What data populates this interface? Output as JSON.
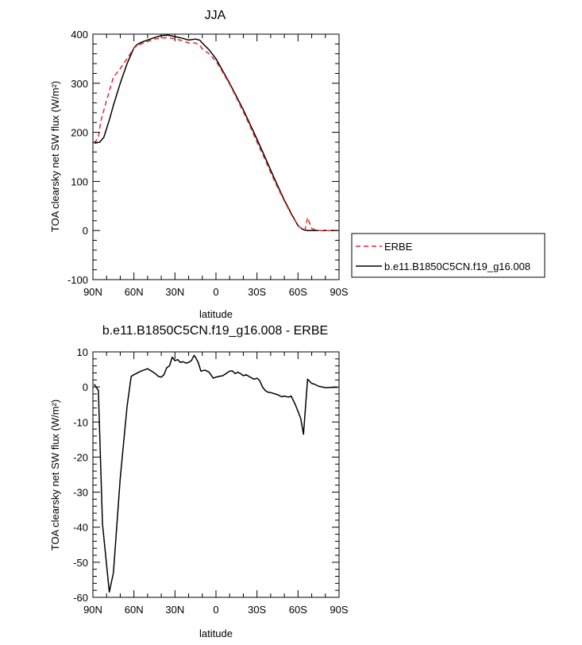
{
  "chart_data": [
    {
      "type": "line",
      "title": "JJA",
      "xlabel": "latitude",
      "ylabel": "TOA clearsky net SW flux (W/m²)",
      "xlim": [
        90,
        -90
      ],
      "ylim": [
        -100,
        400
      ],
      "x_ticks": [
        90,
        60,
        30,
        0,
        -30,
        -60,
        -90
      ],
      "x_tick_labels": [
        "90N",
        "60N",
        "30N",
        "0",
        "30S",
        "60S",
        "90S"
      ],
      "y_ticks": [
        -100,
        0,
        100,
        200,
        300,
        400
      ],
      "y_tick_labels": [
        "-100",
        "0",
        "100",
        "200",
        "300",
        "400"
      ],
      "legend": "right",
      "series": [
        {
          "name": "ERBE",
          "color": "#e8262a",
          "dash": "dashed",
          "x": [
            89,
            86,
            84,
            80,
            75,
            70,
            65,
            60,
            55,
            50,
            45,
            40,
            35,
            30,
            25,
            20,
            15,
            12,
            10,
            5,
            0,
            -5,
            -10,
            -15,
            -20,
            -25,
            -30,
            -35,
            -40,
            -45,
            -50,
            -55,
            -60,
            -65,
            -67,
            -70,
            -75,
            -80,
            -85,
            -89
          ],
          "values": [
            178,
            190,
            225,
            265,
            312,
            330,
            350,
            372,
            380,
            385,
            390,
            392,
            393,
            390,
            387,
            382,
            382,
            378,
            370,
            360,
            345,
            322,
            298,
            270,
            242,
            212,
            180,
            150,
            118,
            88,
            60,
            33,
            10,
            0,
            26,
            4,
            0,
            0,
            0,
            0
          ]
        },
        {
          "name": "b.e11.B1850C5CN.f19_g16.008",
          "color": "#000000",
          "dash": "solid",
          "x": [
            89,
            85,
            82,
            78,
            75,
            70,
            65,
            60,
            58,
            55,
            50,
            45,
            40,
            35,
            30,
            25,
            20,
            15,
            12,
            10,
            5,
            0,
            -5,
            -10,
            -15,
            -20,
            -25,
            -30,
            -35,
            -40,
            -45,
            -50,
            -55,
            -60,
            -63,
            -65,
            -67,
            -70,
            -75,
            -80,
            -85,
            -89
          ],
          "values": [
            178,
            180,
            190,
            225,
            255,
            300,
            340,
            372,
            378,
            383,
            388,
            393,
            397,
            398,
            395,
            392,
            388,
            390,
            388,
            382,
            368,
            350,
            325,
            300,
            273,
            246,
            216,
            186,
            155,
            123,
            92,
            62,
            35,
            10,
            3,
            1,
            0,
            0,
            0,
            0,
            0,
            0
          ]
        }
      ]
    },
    {
      "type": "line",
      "title": "b.e11.B1850C5CN.f19_g16.008 - ERBE",
      "xlabel": "latitude",
      "ylabel": "TOA clearsky net SW flux (W/m²)",
      "xlim": [
        90,
        -90
      ],
      "ylim": [
        -60,
        10
      ],
      "x_ticks": [
        90,
        60,
        30,
        0,
        -30,
        -60,
        -90
      ],
      "x_tick_labels": [
        "90N",
        "60N",
        "30N",
        "0",
        "30S",
        "60S",
        "90S"
      ],
      "y_ticks": [
        -60,
        -50,
        -40,
        -30,
        -20,
        -10,
        0,
        10
      ],
      "y_tick_labels": [
        "-60",
        "-50",
        "-40",
        "-30",
        "-20",
        "-10",
        "0",
        "10"
      ],
      "series": [
        {
          "color": "#000000",
          "dash": "solid",
          "x": [
            89,
            86,
            83,
            78,
            75,
            70,
            65,
            62,
            60,
            55,
            50,
            45,
            42,
            40,
            38,
            36,
            34,
            32,
            30,
            28,
            26,
            24,
            22,
            20,
            18,
            16,
            15,
            13,
            11,
            8,
            5,
            2,
            0,
            -2,
            -5,
            -8,
            -10,
            -12,
            -14,
            -16,
            -18,
            -20,
            -22,
            -25,
            -28,
            -30,
            -32,
            -34,
            -36,
            -38,
            -40,
            -45,
            -48,
            -50,
            -53,
            -55,
            -58,
            -60,
            -62,
            -64,
            -66,
            -67,
            -68,
            -70,
            -72,
            -75,
            -80,
            -85,
            -89
          ],
          "values": [
            0.8,
            -1,
            -39,
            -58.5,
            -53,
            -26,
            -5.5,
            3,
            3.5,
            4.5,
            5.2,
            4,
            3,
            2.8,
            3.5,
            5.5,
            6,
            8.5,
            7.5,
            7.8,
            7,
            7.2,
            6.8,
            7,
            7.5,
            9,
            8.5,
            7,
            4.5,
            4.8,
            4.2,
            2.5,
            2.8,
            3,
            3.2,
            4,
            4.5,
            4.6,
            3.8,
            4.2,
            3.8,
            3.2,
            3.5,
            2.8,
            2.2,
            2.5,
            1.8,
            0,
            -1,
            -1.5,
            -1.6,
            -2.2,
            -2.8,
            -2.6,
            -2.9,
            -2.6,
            -5,
            -7,
            -9,
            -13.5,
            -3,
            2.2,
            1.8,
            1,
            0.8,
            0.2,
            -0.2,
            -0.1,
            -0.1
          ]
        }
      ]
    }
  ],
  "legend_entries": [
    "ERBE",
    "b.e11.B1850C5CN.f19_g16.008"
  ]
}
